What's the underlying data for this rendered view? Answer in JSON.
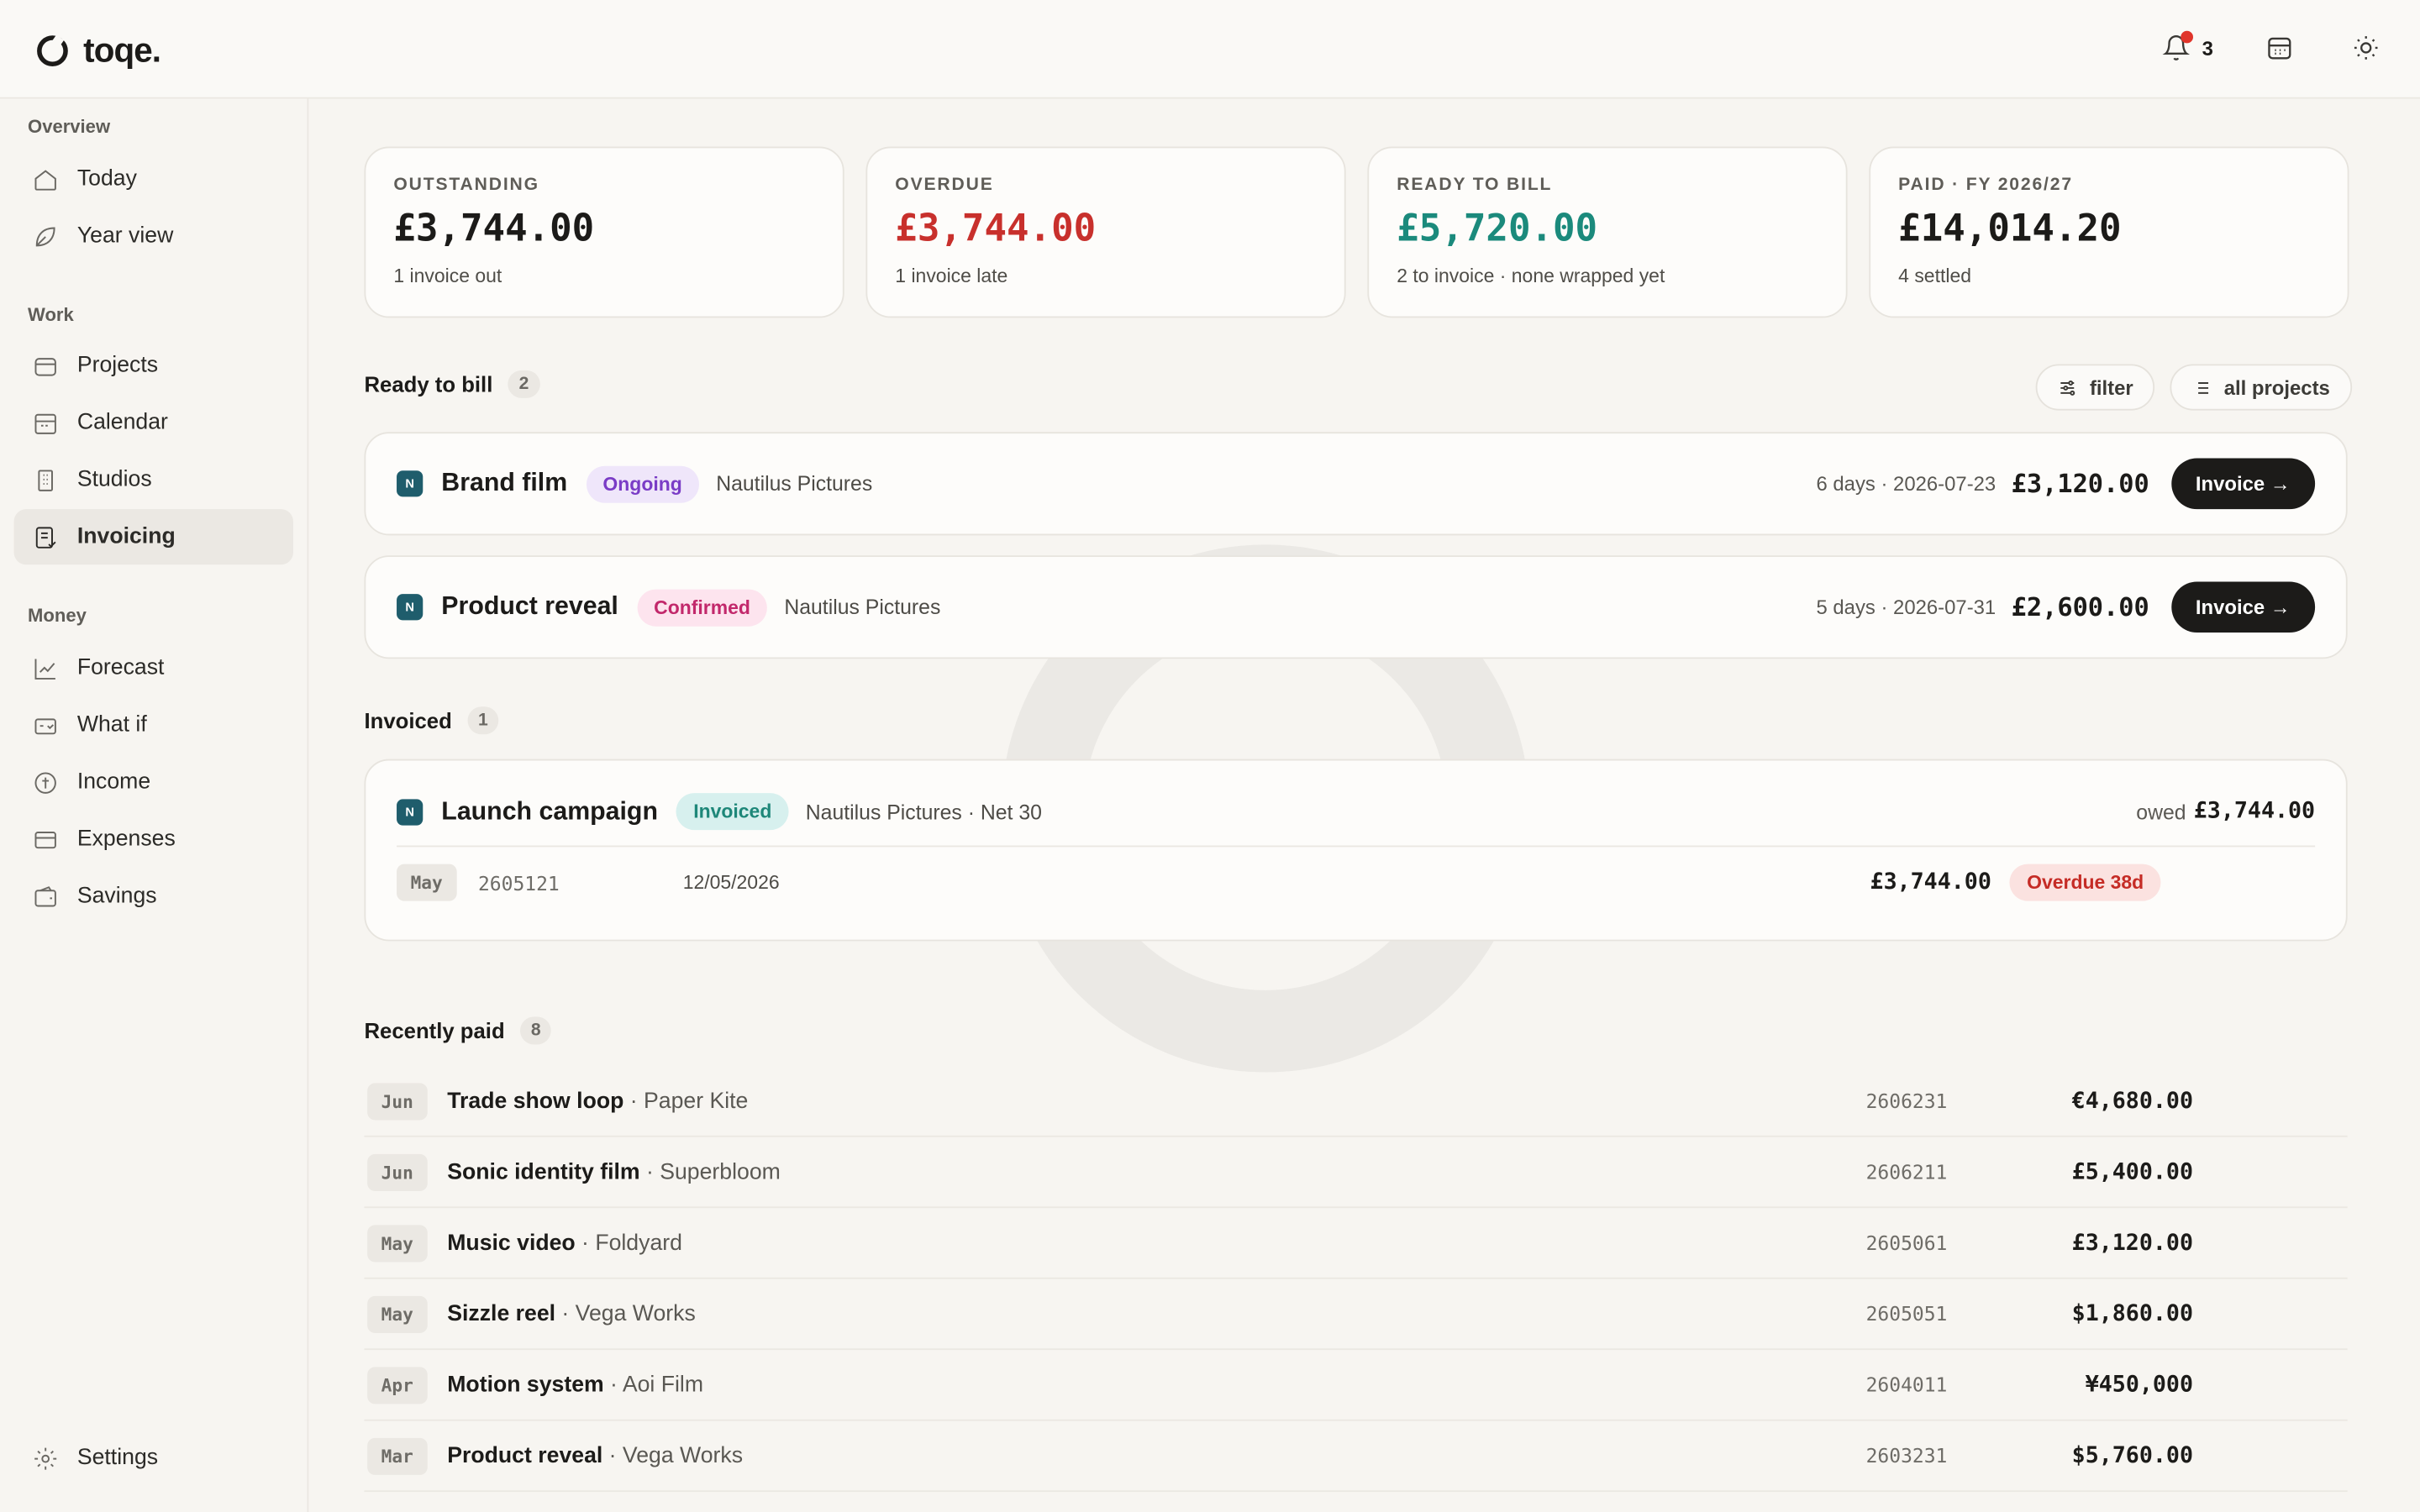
{
  "app": {
    "name": "toqe."
  },
  "topbar": {
    "notification_count": "3",
    "icons": [
      "bell-icon",
      "calendar-icon",
      "sun-icon"
    ]
  },
  "sidebar": {
    "sections": [
      {
        "label": "Overview",
        "items": [
          {
            "label": "Today",
            "icon": "home-icon"
          },
          {
            "label": "Year view",
            "icon": "leaf-icon"
          }
        ]
      },
      {
        "label": "Work",
        "items": [
          {
            "label": "Projects",
            "icon": "box-icon"
          },
          {
            "label": "Calendar",
            "icon": "calendar-icon"
          },
          {
            "label": "Studios",
            "icon": "building-icon"
          },
          {
            "label": "Invoicing",
            "icon": "receipt-icon",
            "active": true
          }
        ]
      },
      {
        "label": "Money",
        "items": [
          {
            "label": "Forecast",
            "icon": "chart-icon"
          },
          {
            "label": "What if",
            "icon": "sparkle-icon"
          },
          {
            "label": "Income",
            "icon": "coin-icon"
          },
          {
            "label": "Expenses",
            "icon": "card-icon"
          },
          {
            "label": "Savings",
            "icon": "wallet-icon"
          }
        ]
      }
    ],
    "settings_label": "Settings"
  },
  "summary": [
    {
      "label": "OUTSTANDING",
      "value": "£3,744.00",
      "sub": "1 invoice out",
      "color": "#1c1b19"
    },
    {
      "label": "OVERDUE",
      "value": "£3,744.00",
      "sub": "1 invoice late",
      "color": "#c8302c"
    },
    {
      "label": "READY TO BILL",
      "value": "£5,720.00",
      "sub": "2 to invoice · none wrapped yet",
      "color": "#1b8a7c"
    },
    {
      "label": "PAID · FY 2026/27",
      "value": "£14,014.20",
      "sub": "4 settled",
      "color": "#1c1b19"
    }
  ],
  "ready": {
    "title": "Ready to bill",
    "count": "2",
    "filter_label": "filter",
    "projects_label": "all projects",
    "rows": [
      {
        "badge": "N",
        "name": "Brand film",
        "status": "Ongoing",
        "client": "Nautilus Pictures",
        "meta": "6 days · 2026-07-23",
        "amount": "£3,120.00",
        "action": "Invoice →"
      },
      {
        "badge": "N",
        "name": "Product reveal",
        "status": "Confirmed",
        "client": "Nautilus Pictures",
        "meta": "5 days · 2026-07-31",
        "amount": "£2,600.00",
        "action": "Invoice →"
      }
    ]
  },
  "invoiced": {
    "title": "Invoiced",
    "count": "1",
    "project": {
      "badge": "N",
      "name": "Launch campaign",
      "status": "Invoiced",
      "client": "Nautilus Pictures · Net 30",
      "owed_label": "owed",
      "owed": "£3,744.00"
    },
    "line": {
      "month": "May",
      "id": "2605121",
      "date": "12/05/2026",
      "amount": "£3,744.00",
      "status": "Overdue 38d"
    }
  },
  "paid": {
    "title": "Recently paid",
    "count": "8",
    "rows": [
      {
        "month": "Jun",
        "name": "Trade show loop",
        "client": "· Paper Kite",
        "id": "2606231",
        "amount": "€4,680.00"
      },
      {
        "month": "Jun",
        "name": "Sonic identity film",
        "client": "· Superbloom",
        "id": "2606211",
        "amount": "£5,400.00"
      },
      {
        "month": "May",
        "name": "Music video",
        "client": "· Foldyard",
        "id": "2605061",
        "amount": "£3,120.00"
      },
      {
        "month": "May",
        "name": "Sizzle reel",
        "client": "· Vega Works",
        "id": "2605051",
        "amount": "$1,860.00"
      },
      {
        "month": "Apr",
        "name": "Motion system",
        "client": "· Aoi Film",
        "id": "2604011",
        "amount": "¥450,000"
      },
      {
        "month": "Mar",
        "name": "Product reveal",
        "client": "· Vega Works",
        "id": "2603231",
        "amount": "$5,760.00"
      }
    ]
  }
}
